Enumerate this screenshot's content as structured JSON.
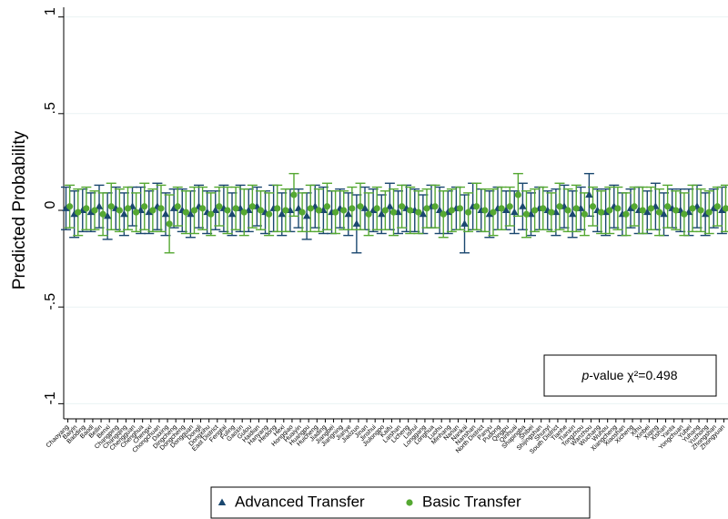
{
  "chart_data": {
    "type": "errorbar",
    "ylabel": "Predicted Probability",
    "annotation": [
      "p",
      "-value χ²=0.498"
    ],
    "ylim": [
      -1.05,
      1.05
    ],
    "yticks": [
      1,
      {
        "value": 0.5,
        "label": ".5"
      },
      0,
      {
        "value": -0.5,
        "label": "-.5"
      },
      -1
    ],
    "grid": true,
    "legend": "bottom",
    "categories": [
      "Chaoyang",
      "Baiyin",
      "Baoding",
      "Baodi",
      "Beilin",
      "Benxi",
      "Changping",
      "Changqing",
      "Chengguan",
      "Chenghua",
      "Chengxi",
      "Chongchuan",
      "Daxing",
      "Dingcheng",
      "Dongcheng",
      "Dongguan",
      "Dongli",
      "Dongxihu",
      "East District",
      "Fengtai",
      "Fuling",
      "Gaoxin",
      "Gulou",
      "Haidian",
      "Hanyang",
      "Hedong",
      "Hexi",
      "Hongqiao",
      "Huaiyin",
      "Huangpu",
      "Huicheng",
      "Jiading",
      "Jiangbei",
      "Jiangning",
      "Jianye",
      "Jiaozuo",
      "Jinan",
      "Jinshui",
      "Jiulongpo",
      "Kaifu",
      "Laishan",
      "Licheng",
      "Lishui",
      "Longgang",
      "Longhua",
      "Luohu",
      "Minhang",
      "Nanan",
      "Nankai",
      "Nanshan",
      "North District",
      "Panyu",
      "Pudong",
      "Qingpu",
      "Qinhuai",
      "Shapingba",
      "Shibei",
      "Shijingshan",
      "Shunyi",
      "South District",
      "Tianhe",
      "Tianxin",
      "Tongzhou",
      "Wanzhou",
      "Wuchang",
      "Wuhou",
      "Xiangcheng",
      "Xiaoshan",
      "Xicheng",
      "Xihu",
      "Xinbei",
      "Xiqing",
      "Xishan",
      "Yanta",
      "Yongchuan",
      "Yubei",
      "Yuhang",
      "Yuzhong",
      "Zhongshan",
      "Zhongyuan"
    ],
    "series": [
      {
        "name": "Advanced Transfer",
        "color": "#1a476f",
        "marker": "triangle",
        "values": [
          0.01,
          -0.02,
          0,
          -0.01,
          0.02,
          -0.03,
          0.01,
          -0.02,
          0.02,
          0,
          -0.01,
          0.02,
          -0.02,
          0.01,
          0,
          -0.02,
          0.02,
          -0.01,
          0,
          0.01,
          -0.02,
          0.01,
          0,
          0.02,
          -0.01,
          0.01,
          -0.02,
          0,
          0.01,
          -0.03,
          0.02,
          0,
          -0.01,
          0.01,
          -0.02,
          -0.07,
          0.01,
          0,
          -0.02,
          0.02,
          -0.01,
          0.01,
          0,
          -0.02,
          0.02,
          0,
          -0.01,
          0.01,
          -0.07,
          0.02,
          0,
          -0.02,
          0.01,
          0,
          -0.01,
          0.02,
          -0.02,
          0.01,
          0,
          -0.01,
          0.02,
          -0.02,
          0.01,
          0.08,
          0,
          -0.01,
          0.02,
          -0.02,
          0.01,
          0,
          -0.01,
          0.02,
          -0.02,
          0.01,
          0,
          -0.01,
          0.02,
          -0.02,
          0.01,
          0
        ],
        "errors": [
          0.11,
          0.12,
          0.11,
          0.1,
          0.11,
          0.12,
          0.11,
          0.11,
          0.1,
          0.12,
          0.11,
          0.12,
          0.11,
          0.1,
          0.11,
          0.12,
          0.11,
          0.11,
          0.1,
          0.12,
          0.11,
          0.12,
          0.11,
          0.1,
          0.11,
          0.12,
          0.11,
          0.11,
          0.1,
          0.12,
          0.11,
          0.12,
          0.11,
          0.1,
          0.11,
          0.15,
          0.11,
          0.11,
          0.1,
          0.12,
          0.11,
          0.12,
          0.11,
          0.1,
          0.11,
          0.12,
          0.11,
          0.11,
          0.15,
          0.12,
          0.11,
          0.12,
          0.11,
          0.1,
          0.11,
          0.12,
          0.11,
          0.11,
          0.1,
          0.12,
          0.11,
          0.12,
          0.11,
          0.11,
          0.11,
          0.12,
          0.11,
          0.11,
          0.1,
          0.12,
          0.11,
          0.12,
          0.11,
          0.1,
          0.11,
          0.12,
          0.11,
          0.11,
          0.1,
          0.12
        ]
      },
      {
        "name": "Basic Transfer",
        "color": "#55a832",
        "marker": "circle",
        "values": [
          0.02,
          -0.01,
          0.01,
          0,
          -0.02,
          0.02,
          0,
          0.01,
          -0.01,
          0.02,
          0,
          0.01,
          -0.07,
          0.02,
          -0.01,
          0,
          0.01,
          -0.02,
          0.02,
          0,
          0.01,
          -0.01,
          0.02,
          0,
          -0.02,
          0.01,
          0,
          0.08,
          -0.01,
          0.01,
          0,
          0.02,
          -0.01,
          0,
          0.01,
          0.02,
          -0.02,
          0.01,
          0,
          -0.01,
          0.02,
          0,
          -0.01,
          0.01,
          0.02,
          -0.02,
          0,
          0.01,
          -0.01,
          0.02,
          0,
          -0.01,
          0.01,
          0.02,
          0.08,
          -0.02,
          0,
          0.01,
          -0.01,
          0.02,
          0,
          0.01,
          -0.02,
          0.02,
          -0.01,
          0,
          0.01,
          -0.02,
          0.02,
          0,
          0.01,
          -0.01,
          0.02,
          0,
          -0.02,
          0.01,
          0,
          -0.01,
          0.02,
          0.01
        ],
        "errors": [
          0.11,
          0.12,
          0.11,
          0.1,
          0.11,
          0.12,
          0.11,
          0.11,
          0.1,
          0.12,
          0.11,
          0.12,
          0.15,
          0.1,
          0.11,
          0.12,
          0.11,
          0.11,
          0.1,
          0.12,
          0.11,
          0.12,
          0.11,
          0.1,
          0.11,
          0.12,
          0.11,
          0.11,
          0.1,
          0.12,
          0.11,
          0.12,
          0.11,
          0.1,
          0.11,
          0.12,
          0.11,
          0.11,
          0.1,
          0.12,
          0.11,
          0.12,
          0.11,
          0.1,
          0.11,
          0.12,
          0.11,
          0.11,
          0.1,
          0.12,
          0.11,
          0.12,
          0.11,
          0.1,
          0.11,
          0.12,
          0.11,
          0.11,
          0.1,
          0.12,
          0.11,
          0.12,
          0.11,
          0.1,
          0.11,
          0.12,
          0.11,
          0.11,
          0.1,
          0.12,
          0.11,
          0.12,
          0.11,
          0.1,
          0.11,
          0.12,
          0.11,
          0.11,
          0.1,
          0.12
        ]
      }
    ]
  }
}
